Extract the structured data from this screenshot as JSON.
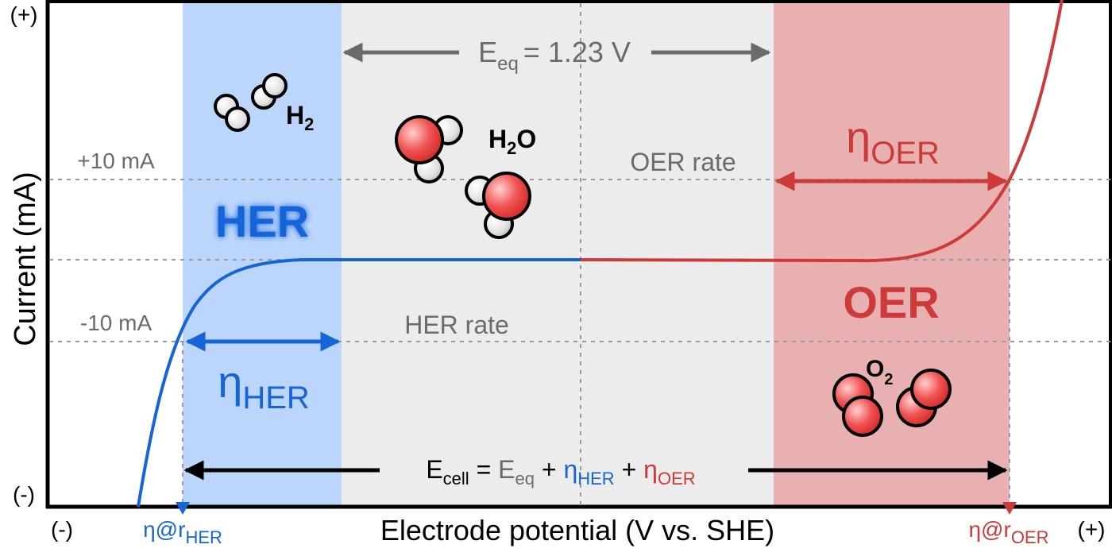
{
  "axes": {
    "y_title": "Current (mA)",
    "x_title": "Electrode potential (V vs. SHE)",
    "y_top": "(+)",
    "y_bottom": "(-)",
    "x_left": "(-)",
    "x_right": "(+)",
    "plus_10": "+10 mA",
    "minus_10": "-10 mA"
  },
  "regions": {
    "her": "HER",
    "oer": "OER",
    "her_rate": "HER rate",
    "oer_rate": "OER rate"
  },
  "equilibrium": {
    "E": "E",
    "sub": "eq",
    "value": "= 1.23 V"
  },
  "overpotentials": {
    "eta": "η",
    "her_sub": "HER",
    "oer_sub": "OER"
  },
  "markers": {
    "her_prefix": "η@r",
    "her_sub": "HER",
    "oer_prefix": "η@r",
    "oer_sub": "OER"
  },
  "molecules": {
    "h2": {
      "sym": "H",
      "sub": "2"
    },
    "h2o": {
      "sym1": "H",
      "sub": "2",
      "sym2": "O"
    },
    "o2": {
      "sym": "O",
      "sub": "2"
    }
  },
  "equation": {
    "E": "E",
    "cell": "cell",
    "eq_sign": " = ",
    "eq": "eq",
    "plus": " + ",
    "eta": "η",
    "her": "HER",
    "oer": "OER"
  },
  "colors": {
    "her": "#1565d8",
    "oer": "#cc3a3a",
    "her_band": "#bcd6fb",
    "oer_band": "#e8b0b0",
    "mid_band": "#ececec",
    "grey_text": "#6b6b6b"
  }
}
